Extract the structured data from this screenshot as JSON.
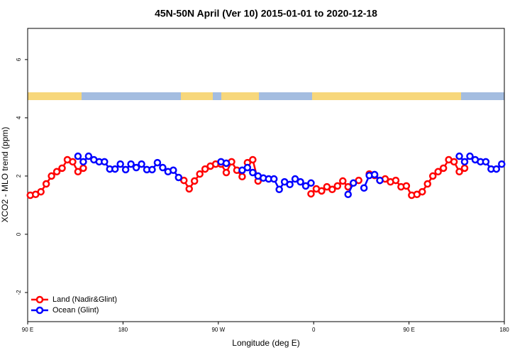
{
  "chart_data": {
    "type": "line",
    "title": "45N-50N April (Ver 10)   2015-01-01 to 2020-12-18",
    "x_label": "Longitude (deg E)",
    "y_label": "XCO2 - MLO trend (ppm)",
    "x": [
      92.5,
      97.5,
      102.5,
      107.5,
      112.5,
      117.5,
      122.5,
      127.5,
      132.5,
      137.5,
      142.5,
      147.5,
      152.5,
      157.5,
      162.5,
      167.5,
      172.5,
      177.5,
      182.5,
      187.5,
      192.5,
      197.5,
      202.5,
      207.5,
      212.5,
      217.5,
      222.5,
      227.5,
      232.5,
      237.5,
      242.5,
      247.5,
      252.5,
      257.5,
      262.5,
      267.5,
      272.5,
      277.5,
      282.5,
      287.5,
      292.5,
      297.5,
      302.5,
      307.5,
      312.5,
      317.5,
      322.5,
      327.5,
      332.5,
      337.5,
      342.5,
      347.5,
      352.5,
      357.5,
      362.5,
      367.5,
      372.5,
      377.5,
      382.5,
      387.5,
      392.5,
      397.5,
      402.5,
      407.5,
      412.5,
      417.5,
      422.5,
      427.5,
      432.5,
      437.5,
      442.5,
      447.5,
      452.5,
      457.5,
      462.5,
      467.5,
      472.5,
      477.5,
      482.5,
      487.5,
      492.5,
      497.5,
      502.5,
      507.5,
      512.5,
      517.5,
      522.5,
      527.5,
      532.5,
      537.5
    ],
    "series": [
      {
        "name": "Land (Nadir&Glint)",
        "color": "#ff0000",
        "values": [
          1.34,
          1.37,
          1.46,
          1.73,
          2.0,
          2.15,
          2.27,
          2.56,
          2.49,
          2.15,
          2.27,
          null,
          null,
          null,
          null,
          null,
          null,
          null,
          null,
          null,
          null,
          null,
          null,
          null,
          null,
          null,
          null,
          null,
          null,
          1.85,
          1.56,
          1.83,
          2.07,
          2.24,
          2.34,
          2.41,
          2.41,
          2.12,
          2.49,
          2.2,
          1.98,
          2.46,
          2.56,
          1.83,
          null,
          null,
          null,
          null,
          null,
          null,
          null,
          null,
          null,
          1.39,
          1.56,
          1.49,
          1.63,
          1.54,
          1.66,
          1.83,
          1.63,
          null,
          1.85,
          null,
          2.07,
          2.02,
          1.85,
          1.9,
          1.8,
          1.85,
          1.63,
          1.66,
          1.34,
          1.37,
          1.46,
          1.73,
          2.0,
          2.15,
          2.27,
          2.56,
          2.49,
          2.15,
          2.27,
          null,
          null,
          null,
          null,
          null,
          null,
          null
        ]
      },
      {
        "name": "Ocean (Glint)",
        "color": "#0000ff",
        "values": [
          null,
          null,
          null,
          null,
          null,
          null,
          null,
          null,
          null,
          2.68,
          2.49,
          2.68,
          2.56,
          2.49,
          2.49,
          2.24,
          2.24,
          2.41,
          2.22,
          2.41,
          2.29,
          2.41,
          2.22,
          2.22,
          2.46,
          2.29,
          2.15,
          2.2,
          1.95,
          null,
          null,
          null,
          null,
          null,
          null,
          null,
          2.49,
          2.44,
          null,
          null,
          2.2,
          2.29,
          2.12,
          2.0,
          1.93,
          1.9,
          1.9,
          1.54,
          1.8,
          1.71,
          1.9,
          1.8,
          1.66,
          1.76,
          null,
          null,
          null,
          null,
          null,
          null,
          1.37,
          1.76,
          null,
          1.59,
          2.02,
          2.05,
          1.85,
          null,
          null,
          null,
          null,
          null,
          null,
          null,
          null,
          null,
          null,
          null,
          null,
          null,
          null,
          2.68,
          2.49,
          2.68,
          2.56,
          2.49,
          2.49,
          2.24,
          2.24,
          2.41
        ]
      }
    ],
    "xlim": [
      90,
      540
    ],
    "xticks": [
      {
        "value": 90,
        "label": "90 E"
      },
      {
        "value": 180,
        "label": "180"
      },
      {
        "value": 270,
        "label": "90 W"
      },
      {
        "value": 360,
        "label": "0"
      },
      {
        "value": 450,
        "label": "90 E"
      },
      {
        "value": 540,
        "label": "180"
      }
    ],
    "ylim": [
      -3,
      7.07
    ],
    "yticks": [
      -2,
      0,
      2,
      4,
      6
    ],
    "legend": "bottom-left"
  }
}
